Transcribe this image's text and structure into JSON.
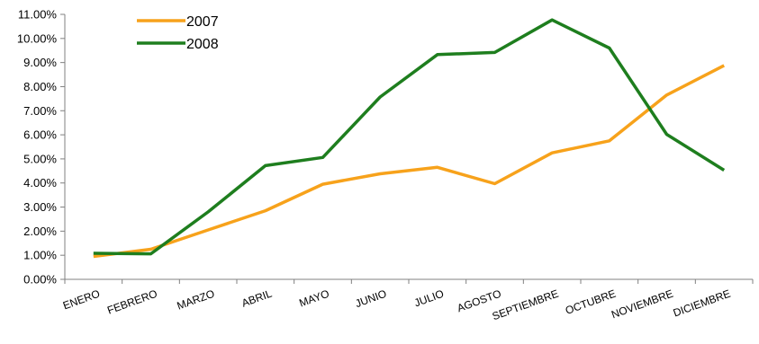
{
  "chart_data": {
    "type": "line",
    "categories": [
      "ENERO",
      "FEBRERO",
      "MARZO",
      "ABRIL",
      "MAYO",
      "JUNIO",
      "JULIO",
      "AGOSTO",
      "SEPTIEMBRE",
      "OCTUBRE",
      "NOVIEMBRE",
      "DICIEMBRE"
    ],
    "y_ticks": [
      "0.00%",
      "1.00%",
      "2.00%",
      "3.00%",
      "4.00%",
      "5.00%",
      "6.00%",
      "7.00%",
      "8.00%",
      "9.00%",
      "10.00%",
      "11.00%"
    ],
    "ylim": [
      0,
      11
    ],
    "y_unit": "%",
    "grid": false,
    "legend_position": "top-left",
    "series": [
      {
        "name": "2007",
        "color": "#F7A21B",
        "values": [
          0.95,
          1.25,
          2.05,
          2.85,
          3.95,
          4.38,
          4.65,
          3.97,
          5.25,
          5.75,
          7.65,
          8.88
        ]
      },
      {
        "name": "2008",
        "color": "#1E7E1E",
        "values": [
          1.08,
          1.06,
          2.8,
          4.72,
          5.06,
          7.57,
          9.33,
          9.42,
          10.77,
          9.6,
          6.02,
          4.53
        ]
      }
    ]
  }
}
